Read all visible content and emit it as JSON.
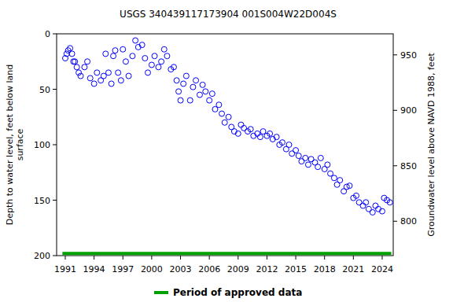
{
  "chart_data": {
    "type": "scatter",
    "title": "USGS 340439117173904 001S004W22D004S",
    "y_label": "Depth to water level, feet below land\nsurface",
    "y2_label": "Groundwater level above NAVD 1988, feet",
    "xlim": [
      1990.1,
      2025.15
    ],
    "xticks": [
      1991,
      1994,
      1997,
      2000,
      2003,
      2006,
      2009,
      2012,
      2015,
      2018,
      2021,
      2024
    ],
    "ylim": [
      0,
      200
    ],
    "yticks": [
      0,
      50,
      100,
      150,
      200
    ],
    "y2lim": [
      969,
      769
    ],
    "y2ticks": [
      950,
      900,
      850,
      800
    ],
    "legend": "bottom",
    "series": [
      {
        "name": "",
        "type": "scatter",
        "marker": "circle",
        "color": "#0000ff",
        "x": [
          1991.0,
          1991.15,
          1991.3,
          1991.5,
          1991.7,
          1991.85,
          1992.0,
          1992.2,
          1992.4,
          1992.6,
          1993.0,
          1993.3,
          1993.6,
          1994.0,
          1994.3,
          1994.7,
          1995.0,
          1995.2,
          1995.5,
          1995.8,
          1996.0,
          1996.2,
          1996.5,
          1996.8,
          1997.0,
          1997.3,
          1997.6,
          1998.0,
          1998.3,
          1998.6,
          1999.0,
          1999.3,
          1999.6,
          2000.0,
          2000.3,
          2000.7,
          2001.0,
          2001.3,
          2001.6,
          2002.0,
          2002.3,
          2002.6,
          2002.8,
          2003.0,
          2003.3,
          2003.6,
          2004.0,
          2004.3,
          2004.6,
          2005.0,
          2005.3,
          2005.6,
          2006.0,
          2006.3,
          2006.6,
          2007.0,
          2007.3,
          2007.6,
          2008.0,
          2008.3,
          2008.6,
          2009.0,
          2009.3,
          2009.6,
          2010.0,
          2010.3,
          2010.6,
          2011.0,
          2011.3,
          2011.6,
          2012.0,
          2012.3,
          2012.6,
          2013.0,
          2013.3,
          2013.6,
          2014.0,
          2014.3,
          2014.6,
          2015.0,
          2015.3,
          2015.6,
          2016.0,
          2016.3,
          2016.6,
          2017.0,
          2017.3,
          2017.6,
          2018.0,
          2018.3,
          2018.6,
          2019.0,
          2019.3,
          2019.6,
          2020.0,
          2020.3,
          2020.6,
          2021.0,
          2021.3,
          2021.6,
          2022.0,
          2022.3,
          2022.6,
          2023.0,
          2023.3,
          2023.6,
          2024.0,
          2024.2,
          2024.5,
          2024.8
        ],
        "values": [
          22,
          18,
          15,
          13,
          18,
          25,
          25,
          30,
          35,
          38,
          30,
          25,
          40,
          45,
          35,
          42,
          38,
          18,
          35,
          45,
          20,
          15,
          35,
          42,
          14,
          25,
          38,
          20,
          6,
          12,
          10,
          22,
          35,
          28,
          20,
          30,
          25,
          14,
          20,
          32,
          30,
          42,
          52,
          60,
          45,
          38,
          60,
          48,
          42,
          55,
          46,
          52,
          60,
          54,
          68,
          64,
          72,
          80,
          75,
          84,
          88,
          90,
          82,
          85,
          88,
          86,
          92,
          90,
          93,
          88,
          92,
          90,
          95,
          93,
          100,
          98,
          104,
          100,
          108,
          105,
          110,
          115,
          112,
          118,
          113,
          116,
          120,
          112,
          122,
          118,
          126,
          130,
          136,
          132,
          142,
          138,
          137,
          148,
          146,
          152,
          155,
          152,
          158,
          161,
          155,
          158,
          160,
          148,
          150,
          152
        ]
      },
      {
        "name": "Period of approved data",
        "type": "line",
        "color": "#00a000",
        "line_style": "solid",
        "x": [
          1990.7,
          2024.95
        ],
        "values": [
          198,
          198
        ]
      }
    ]
  }
}
